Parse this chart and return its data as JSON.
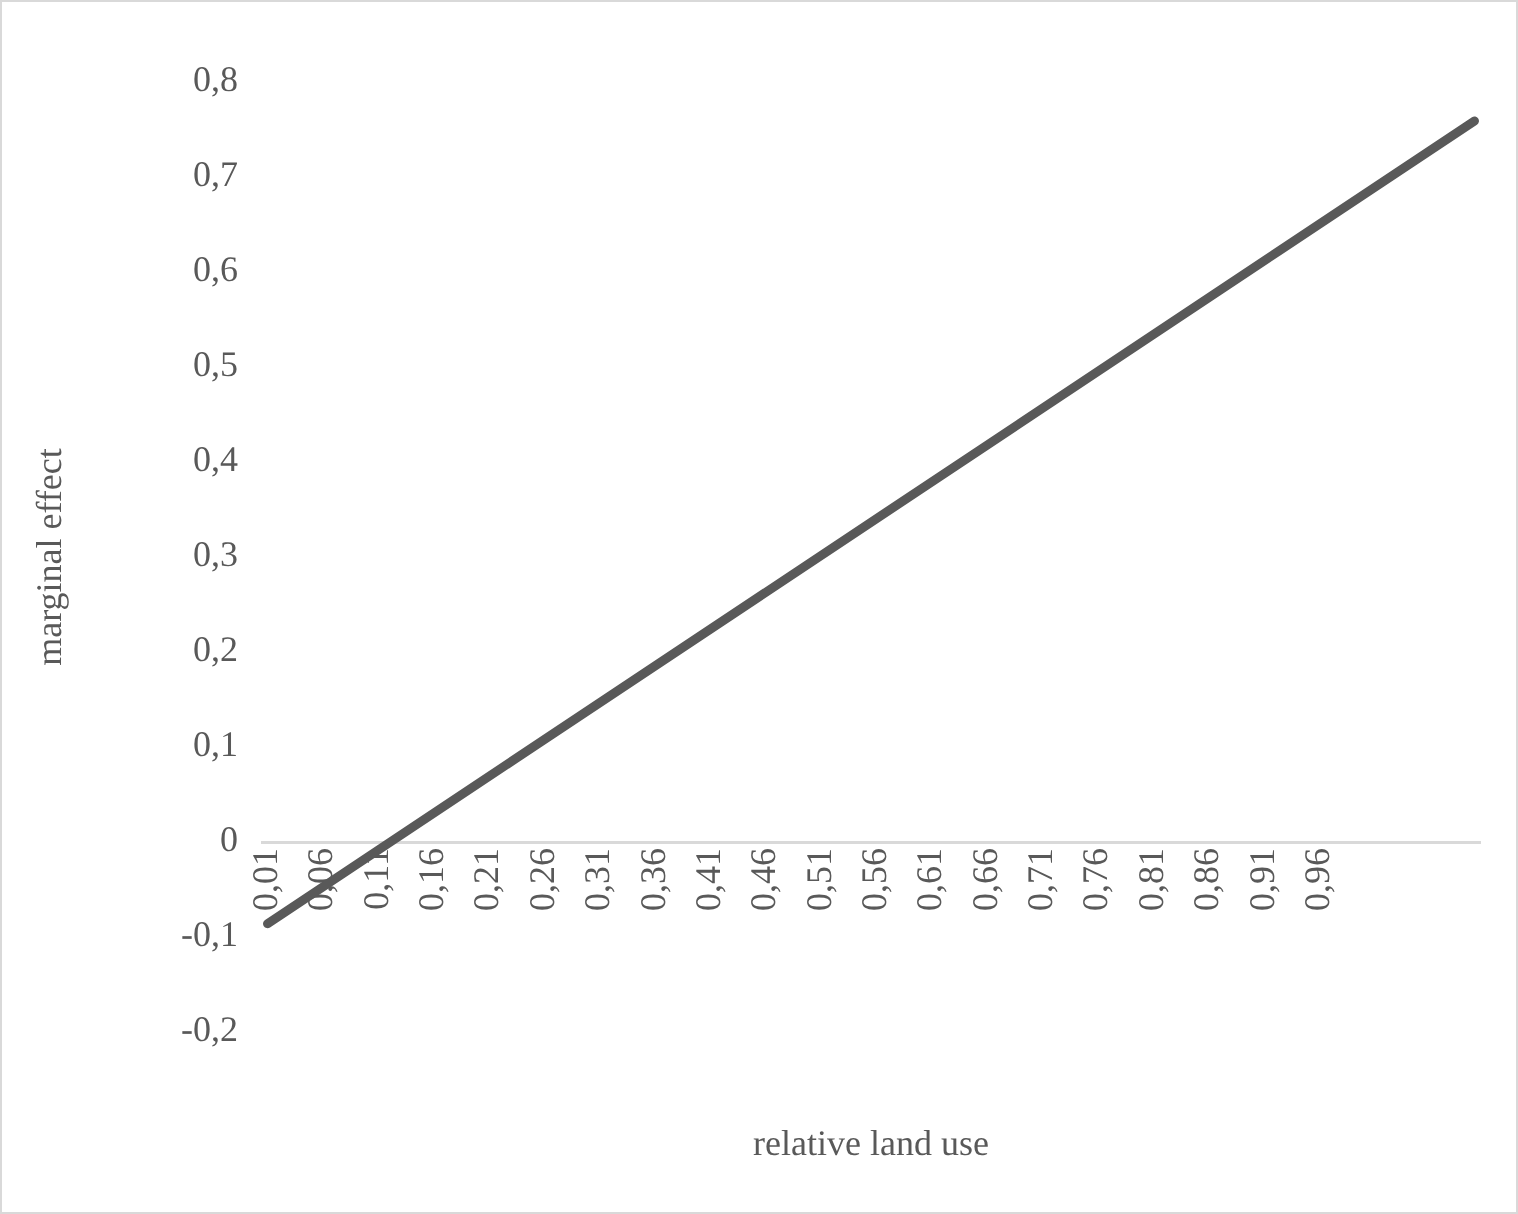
{
  "chart_data": {
    "type": "line",
    "xlabel": "relative land use",
    "ylabel": "marginal effect",
    "series": [
      {
        "color": "#595959",
        "x": [
          0.01,
          1.1
        ],
        "values": [
          -0.086,
          0.759
        ]
      }
    ],
    "xlim": [
      0.005,
      1.105
    ],
    "xticks": [
      {
        "value": 0.01,
        "label": "0,01"
      },
      {
        "value": 0.06,
        "label": "0,06"
      },
      {
        "value": 0.11,
        "label": "0,11"
      },
      {
        "value": 0.16,
        "label": "0,16"
      },
      {
        "value": 0.21,
        "label": "0,21"
      },
      {
        "value": 0.26,
        "label": "0,26"
      },
      {
        "value": 0.31,
        "label": "0,31"
      },
      {
        "value": 0.36,
        "label": "0,36"
      },
      {
        "value": 0.41,
        "label": "0,41"
      },
      {
        "value": 0.46,
        "label": "0,46"
      },
      {
        "value": 0.51,
        "label": "0,51"
      },
      {
        "value": 0.56,
        "label": "0,56"
      },
      {
        "value": 0.61,
        "label": "0,61"
      },
      {
        "value": 0.66,
        "label": "0,66"
      },
      {
        "value": 0.71,
        "label": "0,71"
      },
      {
        "value": 0.76,
        "label": "0,76"
      },
      {
        "value": 0.81,
        "label": "0,81"
      },
      {
        "value": 0.86,
        "label": "0,86"
      },
      {
        "value": 0.91,
        "label": "0,91"
      },
      {
        "value": 0.96,
        "label": "0,96"
      }
    ],
    "ylim": [
      -0.2,
      0.8
    ],
    "yticks": [
      {
        "value": -0.2,
        "label": "-0,2"
      },
      {
        "value": -0.1,
        "label": "-0,1"
      },
      {
        "value": 0,
        "label": "0"
      },
      {
        "value": 0.1,
        "label": "0,1"
      },
      {
        "value": 0.2,
        "label": "0,2"
      },
      {
        "value": 0.3,
        "label": "0,3"
      },
      {
        "value": 0.4,
        "label": "0,4"
      },
      {
        "value": 0.5,
        "label": "0,5"
      },
      {
        "value": 0.6,
        "label": "0,6"
      },
      {
        "value": 0.7,
        "label": "0,7"
      },
      {
        "value": 0.8,
        "label": "0,8"
      }
    ],
    "grid": false,
    "legend": false,
    "marker": "none",
    "line_style": "solid"
  }
}
